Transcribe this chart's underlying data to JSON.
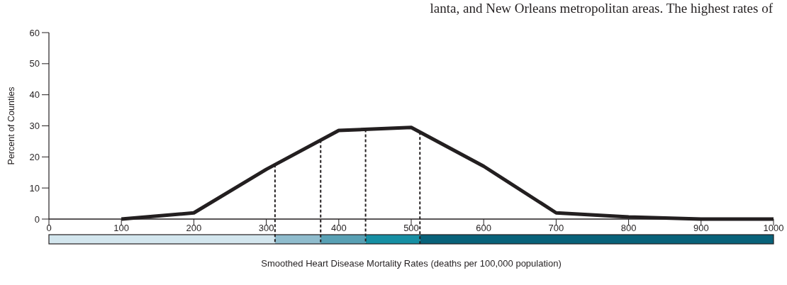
{
  "chart_data": {
    "type": "line",
    "xlabel": "Smoothed Heart Disease Mortality Rates (deaths per 100,000 population)",
    "ylabel": "Percent of Counties",
    "annotations": [
      "lanta, and New Orleans metropolitan areas. The highest rates of"
    ],
    "x": [
      100,
      200,
      300,
      400,
      500,
      600,
      700,
      800,
      900,
      1000
    ],
    "series": [
      {
        "color": "#231f20",
        "values": [
          0,
          2,
          16,
          28.5,
          29.5,
          17,
          2,
          0.7,
          0,
          0
        ]
      }
    ],
    "xlim": [
      0,
      1000
    ],
    "xticks": [
      0,
      100,
      200,
      300,
      400,
      500,
      600,
      700,
      800,
      900,
      1000
    ],
    "ylim": [
      0,
      60
    ],
    "yticks": [
      0,
      10,
      20,
      30,
      40,
      50,
      60
    ],
    "grid": false,
    "marker": "none",
    "line_style": "solid",
    "ref_lines": [
      {
        "axis": "x",
        "value": 312,
        "line_style": "dashed",
        "color": "#231f20"
      },
      {
        "axis": "x",
        "value": 375,
        "line_style": "dashed",
        "color": "#231f20"
      },
      {
        "axis": "x",
        "value": 437,
        "line_style": "dashed",
        "color": "#231f20"
      },
      {
        "axis": "x",
        "value": 512,
        "line_style": "dashed",
        "color": "#231f20"
      }
    ]
  }
}
